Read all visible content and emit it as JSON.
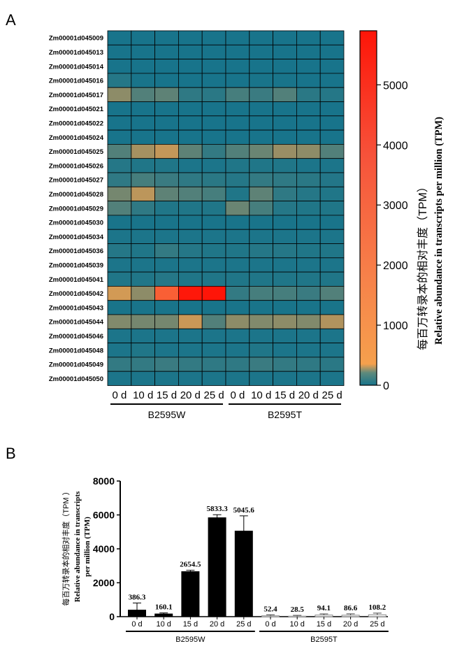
{
  "panels": {
    "a": "A",
    "b": "B"
  },
  "heatmap": {
    "genes": [
      "Zm00001d045009",
      "Zm00001d045013",
      "Zm00001d045014",
      "Zm00001d045016",
      "Zm00001d045017",
      "Zm00001d045021",
      "Zm00001d045022",
      "Zm00001d045024",
      "Zm00001d045025",
      "Zm00001d045026",
      "Zm00001d045027",
      "Zm00001d045028",
      "Zm00001d045029",
      "Zm00001d045030",
      "Zm00001d045034",
      "Zm00001d045036",
      "Zm00001d045039",
      "Zm00001d045041",
      "Zm00001d045042",
      "Zm00001d045043",
      "Zm00001d045044",
      "Zm00001d045046",
      "Zm00001d045048",
      "Zm00001d045049",
      "Zm00001d045050"
    ],
    "timepoints": [
      "0 d",
      "10 d",
      "15 d",
      "20 d",
      "25 d",
      "0 d",
      "10 d",
      "15 d",
      "20 d",
      "25 d"
    ],
    "groups": [
      "B2595W",
      "B2595T"
    ],
    "colorbar": {
      "ticks": [
        "0",
        "1000",
        "2000",
        "3000",
        "4000",
        "5000"
      ],
      "tick_values": [
        0,
        1000,
        2000,
        3000,
        4000,
        5000
      ],
      "max": 5900,
      "colors": [
        "#17748b",
        "#f6a04c",
        "#fe0500"
      ],
      "title_cn": "每百万转录本的相对丰度（TPM）",
      "title_en": "Relative abundance in transcripts per million (TPM)"
    }
  },
  "chart_data": [
    {
      "type": "heatmap",
      "rows": [
        "Zm00001d045009",
        "Zm00001d045013",
        "Zm00001d045014",
        "Zm00001d045016",
        "Zm00001d045017",
        "Zm00001d045021",
        "Zm00001d045022",
        "Zm00001d045024",
        "Zm00001d045025",
        "Zm00001d045026",
        "Zm00001d045027",
        "Zm00001d045028",
        "Zm00001d045029",
        "Zm00001d045030",
        "Zm00001d045034",
        "Zm00001d045036",
        "Zm00001d045039",
        "Zm00001d045041",
        "Zm00001d045042",
        "Zm00001d045043",
        "Zm00001d045044",
        "Zm00001d045046",
        "Zm00001d045048",
        "Zm00001d045049",
        "Zm00001d045050"
      ],
      "columns": [
        "B2595W 0 d",
        "B2595W 10 d",
        "B2595W 15 d",
        "B2595W 20 d",
        "B2595W 25 d",
        "B2595T 0 d",
        "B2595T 10 d",
        "B2595T 15 d",
        "B2595T 20 d",
        "B2595T 25 d"
      ],
      "values": [
        [
          5,
          5,
          5,
          5,
          5,
          5,
          5,
          5,
          5,
          5
        ],
        [
          5,
          5,
          5,
          5,
          5,
          5,
          5,
          5,
          5,
          5
        ],
        [
          5,
          5,
          5,
          5,
          5,
          5,
          5,
          5,
          5,
          5
        ],
        [
          60,
          10,
          5,
          5,
          5,
          5,
          10,
          10,
          5,
          5
        ],
        [
          500,
          250,
          300,
          100,
          80,
          200,
          150,
          250,
          80,
          60
        ],
        [
          5,
          5,
          5,
          5,
          5,
          5,
          5,
          5,
          5,
          5
        ],
        [
          5,
          5,
          5,
          5,
          5,
          5,
          5,
          5,
          5,
          5
        ],
        [
          5,
          5,
          5,
          5,
          5,
          5,
          5,
          5,
          5,
          5
        ],
        [
          250,
          600,
          800,
          300,
          120,
          250,
          350,
          550,
          500,
          250
        ],
        [
          60,
          40,
          40,
          20,
          20,
          40,
          40,
          40,
          20,
          20
        ],
        [
          100,
          200,
          150,
          100,
          80,
          60,
          120,
          100,
          80,
          50
        ],
        [
          400,
          700,
          300,
          250,
          200,
          40,
          300,
          100,
          60,
          40
        ],
        [
          250,
          100,
          40,
          40,
          40,
          350,
          200,
          60,
          40,
          40
        ],
        [
          10,
          10,
          10,
          10,
          10,
          10,
          10,
          10,
          10,
          10
        ],
        [
          20,
          20,
          20,
          20,
          20,
          20,
          20,
          20,
          20,
          20
        ],
        [
          60,
          40,
          120,
          60,
          40,
          40,
          60,
          60,
          40,
          40
        ],
        [
          20,
          20,
          20,
          20,
          20,
          20,
          20,
          20,
          20,
          20
        ],
        [
          40,
          40,
          60,
          40,
          40,
          40,
          40,
          40,
          40,
          40
        ],
        [
          1100,
          500,
          4300,
          5833,
          5900,
          120,
          200,
          200,
          150,
          250
        ],
        [
          10,
          10,
          10,
          10,
          10,
          10,
          10,
          10,
          10,
          10
        ],
        [
          450,
          400,
          400,
          950,
          250,
          500,
          450,
          500,
          450,
          650
        ],
        [
          20,
          20,
          20,
          20,
          20,
          20,
          20,
          20,
          20,
          20
        ],
        [
          20,
          40,
          20,
          20,
          20,
          20,
          40,
          20,
          20,
          20
        ],
        [
          120,
          120,
          150,
          120,
          100,
          100,
          150,
          120,
          100,
          80
        ],
        [
          20,
          20,
          20,
          20,
          20,
          20,
          20,
          20,
          20,
          20
        ]
      ],
      "zlim": [
        0,
        5900
      ],
      "colorbar_ticks": [
        0,
        1000,
        2000,
        3000,
        4000,
        5000
      ],
      "colorbar_label": "每百万转录本的相对丰度（TPM） Relative abundance in transcripts per million (TPM)"
    },
    {
      "type": "bar",
      "categories": [
        "0 d",
        "10 d",
        "15 d",
        "20 d",
        "25 d",
        "0 d",
        "10 d",
        "15 d",
        "20 d",
        "25 d"
      ],
      "groups": [
        "B2595W",
        "B2595T"
      ],
      "values": [
        386.3,
        160.1,
        2654.5,
        5833.3,
        5045.6,
        52.4,
        28.5,
        94.1,
        86.6,
        108.2
      ],
      "labels": [
        "386.3",
        "160.1",
        "2654.5",
        "5833.3",
        "5045.6",
        "52.4",
        "28.5",
        "94.1",
        "86.6",
        "108.2"
      ],
      "errors": [
        420,
        60,
        80,
        180,
        900,
        60,
        50,
        70,
        80,
        100
      ],
      "fill": [
        "#000000",
        "#000000",
        "#000000",
        "#000000",
        "#000000",
        "#ffffff",
        "#ffffff",
        "#ffffff",
        "#ffffff",
        "#ffffff"
      ],
      "ylim": [
        0,
        8000
      ],
      "yticks": [
        "0",
        "2000",
        "4000",
        "6000",
        "8000"
      ],
      "ytick_values": [
        0,
        2000,
        4000,
        6000,
        8000
      ],
      "ylabel_cn": "每百万转录本的相对丰度（TPM  ）",
      "ylabel_en_1": "Relative abundance in transcripts",
      "ylabel_en_2": "per million (TPM)"
    }
  ]
}
